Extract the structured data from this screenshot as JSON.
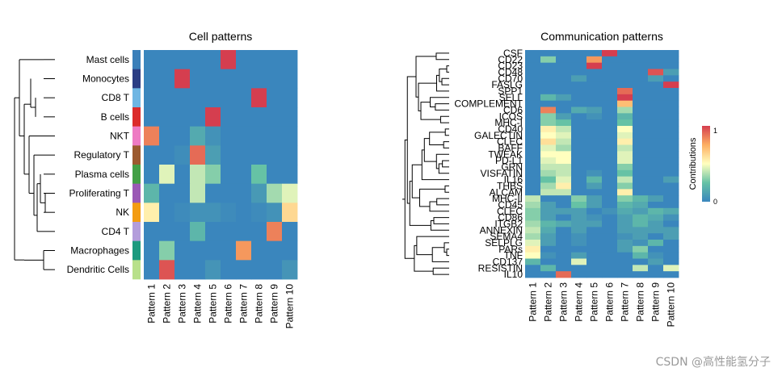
{
  "watermark": "CSDN @高性能氢分子",
  "chart_data": [
    {
      "type": "heatmap",
      "title": "Cell patterns",
      "rows": [
        "Mast cells",
        "Monocytes",
        "CD8 T",
        "B cells",
        "NKT",
        "Regulatory T",
        "Plasma cells",
        "Proliferating T",
        "NK",
        "CD4 T",
        "Macrophages",
        "Dendritic Cells"
      ],
      "columns": [
        "Pattern 1",
        "Pattern 2",
        "Pattern 3",
        "Pattern 4",
        "Pattern 5",
        "Pattern 6",
        "Pattern 7",
        "Pattern 8",
        "Pattern 9",
        "Pattern 10"
      ],
      "row_colors": [
        "#3a7fb9",
        "#2b3d84",
        "#6fb6e3",
        "#dc2b2b",
        "#ee7bc3",
        "#9c5a2f",
        "#43a046",
        "#9b59b6",
        "#f39c12",
        "#b39ddb",
        "#1c9a7f",
        "#b8e08a"
      ],
      "values": [
        [
          0,
          0,
          0,
          0,
          0,
          1,
          0,
          0,
          0,
          0
        ],
        [
          0,
          0,
          1,
          0,
          0,
          0,
          0,
          0,
          0,
          0
        ],
        [
          0,
          0,
          0,
          0,
          0,
          0,
          0,
          1,
          0,
          0
        ],
        [
          0,
          0,
          0,
          0,
          1,
          0,
          0,
          0,
          0,
          0
        ],
        [
          0.85,
          0,
          0,
          0.15,
          0.05,
          0,
          0,
          0,
          0,
          0
        ],
        [
          0,
          0,
          0.03,
          0.9,
          0.1,
          0,
          0,
          0,
          0,
          0
        ],
        [
          0,
          0.45,
          0,
          0.4,
          0.3,
          0,
          0,
          0.25,
          0,
          0
        ],
        [
          0.2,
          0,
          0,
          0.4,
          0,
          0,
          0,
          0.08,
          0.35,
          0.45
        ],
        [
          0.55,
          0,
          0.02,
          0.05,
          0.05,
          0.02,
          0,
          0.02,
          0.05,
          0.62
        ],
        [
          0,
          0,
          0,
          0.2,
          0,
          0,
          0,
          0,
          0.85,
          0
        ],
        [
          0,
          0.3,
          0,
          0,
          0,
          0,
          0.8,
          0,
          0,
          0
        ],
        [
          0,
          0.95,
          0,
          0,
          0.06,
          0,
          0,
          0,
          0,
          0.06
        ]
      ],
      "dendrogram": "row clustering"
    },
    {
      "type": "heatmap",
      "title": "Communication patterns",
      "rows": [
        "CSF",
        "CD22",
        "CD23",
        "CD48",
        "CD70",
        "FASLG",
        "SPP1",
        "SELL",
        "COMPLEMENT",
        "CD6",
        "ICOS",
        "MHC-I",
        "CD40",
        "GALECTIN",
        "CLEC",
        "BAFF",
        "TWEAK",
        "PD-L1",
        "GRN",
        "VISFATIN",
        "IL16",
        "THBS",
        "ALCAM",
        "MHC-II",
        "CD45",
        "CLEC",
        "CD86",
        "ITGB2",
        "ANNEXIN",
        "SEMA4",
        "SELPLG",
        "PARs",
        "TNF",
        "CD137",
        "RESISTIN",
        "IL10"
      ],
      "columns": [
        "Pattern 1",
        "Pattern 2",
        "Pattern 3",
        "Pattern 4",
        "Pattern 5",
        "Pattern 6",
        "Pattern 7",
        "Pattern 8",
        "Pattern 9",
        "Pattern 10"
      ],
      "values": [
        [
          0,
          0,
          0,
          0,
          0,
          1,
          0,
          0,
          0,
          0
        ],
        [
          0,
          0.3,
          0,
          0,
          0.8,
          0,
          0,
          0,
          0,
          0
        ],
        [
          0,
          0,
          0,
          0,
          1,
          0,
          0,
          0,
          0,
          0
        ],
        [
          0,
          0,
          0,
          0,
          0,
          0,
          0,
          0,
          0.95,
          0.1
        ],
        [
          0,
          0,
          0,
          0.1,
          0,
          0,
          0,
          0,
          0.1,
          0
        ],
        [
          0,
          0,
          0,
          0,
          0,
          0,
          0,
          0,
          0,
          1
        ],
        [
          0,
          0,
          0,
          0,
          0,
          0,
          0.9,
          0,
          0,
          0
        ],
        [
          0,
          0.2,
          0.1,
          0,
          0,
          0,
          1,
          0,
          0,
          0
        ],
        [
          0,
          0,
          0,
          0,
          0,
          0,
          0.7,
          0,
          0,
          0
        ],
        [
          0,
          0.85,
          0,
          0.15,
          0.1,
          0,
          0.35,
          0,
          0,
          0
        ],
        [
          0,
          0.3,
          0.1,
          0,
          0.05,
          0,
          0.2,
          0,
          0,
          0
        ],
        [
          0,
          0.3,
          0.25,
          0,
          0,
          0,
          0.25,
          0,
          0,
          0
        ],
        [
          0,
          0.55,
          0.4,
          0,
          0,
          0,
          0.5,
          0,
          0,
          0
        ],
        [
          0,
          0.5,
          0.45,
          0,
          0,
          0,
          0.45,
          0,
          0,
          0
        ],
        [
          0,
          0.6,
          0.4,
          0,
          0,
          0,
          0.55,
          0,
          0,
          0
        ],
        [
          0,
          0.45,
          0.35,
          0,
          0,
          0,
          0.4,
          0,
          0,
          0
        ],
        [
          0,
          0.5,
          0.5,
          0,
          0,
          0,
          0.45,
          0,
          0,
          0
        ],
        [
          0,
          0.45,
          0.5,
          0,
          0,
          0,
          0.45,
          0,
          0,
          0
        ],
        [
          0,
          0.4,
          0.4,
          0,
          0,
          0,
          0.3,
          0,
          0,
          0
        ],
        [
          0,
          0.35,
          0.4,
          0,
          0.05,
          0,
          0.25,
          0,
          0,
          0
        ],
        [
          0,
          0.25,
          0.45,
          0,
          0.2,
          0,
          0.4,
          0,
          0,
          0.1
        ],
        [
          0,
          0.35,
          0.55,
          0,
          0.1,
          0,
          0.3,
          0,
          0,
          0
        ],
        [
          0,
          0.4,
          0.4,
          0,
          0,
          0,
          0.55,
          0,
          0,
          0
        ],
        [
          0.4,
          0,
          0,
          0.3,
          0.1,
          0,
          0.3,
          0.2,
          0.1,
          0
        ],
        [
          0.35,
          0.1,
          0,
          0.25,
          0.1,
          0,
          0.2,
          0.15,
          0,
          0
        ],
        [
          0.3,
          0.1,
          0.1,
          0.1,
          0,
          0.05,
          0.15,
          0.1,
          0.2,
          0.15
        ],
        [
          0.3,
          0.1,
          0,
          0.1,
          0.05,
          0,
          0.1,
          0.2,
          0.15,
          0.05
        ],
        [
          0.35,
          0.2,
          0.15,
          0.1,
          0.1,
          0,
          0.1,
          0.2,
          0.1,
          0
        ],
        [
          0.4,
          0.15,
          0,
          0.1,
          0,
          0,
          0.1,
          0.1,
          0.1,
          0.1
        ],
        [
          0.35,
          0.1,
          0,
          0.05,
          0,
          0,
          0.05,
          0.1,
          0,
          0.1
        ],
        [
          0.45,
          0.1,
          0,
          0.05,
          0,
          0,
          0.1,
          0.05,
          0.2,
          0
        ],
        [
          0.55,
          0,
          0,
          0,
          0,
          0,
          0.1,
          0.3,
          0,
          0
        ],
        [
          0.5,
          0.05,
          0,
          0.1,
          0,
          0,
          0,
          0.2,
          0.05,
          0
        ],
        [
          0.2,
          0,
          0,
          0.45,
          0,
          0,
          0,
          0,
          0.1,
          0
        ],
        [
          0,
          0.2,
          0,
          0,
          0,
          0,
          0,
          0.4,
          0,
          0.45
        ],
        [
          0,
          0,
          0.9,
          0,
          0,
          0,
          0,
          0,
          0,
          0
        ]
      ],
      "dendrogram": "row clustering",
      "legend": {
        "title": "Contributions",
        "ticks": [
          "1",
          "0"
        ],
        "range": [
          0,
          1
        ]
      }
    }
  ]
}
